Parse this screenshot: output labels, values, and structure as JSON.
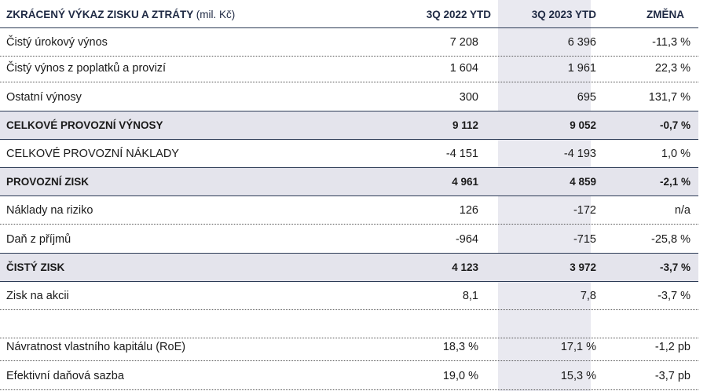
{
  "header": {
    "title": "ZKRÁCENÝ VÝKAZ ZISKU A ZTRÁTY",
    "unit": "(mil. Kč)",
    "col_2022": "3Q 2022 YTD",
    "col_2023": "3Q 2023 YTD",
    "col_change": "ZMĚNA"
  },
  "rows": [
    {
      "label": "Čistý úrokový výnos",
      "y2022": "7 208",
      "y2023": "6 396",
      "change": "-11,3 %",
      "total": false
    },
    {
      "label": "Čistý výnos z poplatků a provizí",
      "y2022": "1 604",
      "y2023": "1 961",
      "change": "22,3 %",
      "total": false
    },
    {
      "label": "Ostatní výnosy",
      "y2022": "300",
      "y2023": "695",
      "change": "131,7 %",
      "total": false
    },
    {
      "label": "CELKOVÉ PROVOZNÍ VÝNOSY",
      "y2022": "9 112",
      "y2023": "9 052",
      "change": "-0,7 %",
      "total": true
    },
    {
      "label": "CELKOVÉ PROVOZNÍ NÁKLADY",
      "y2022": "-4 151",
      "y2023": "-4 193",
      "change": "1,0 %",
      "total": false
    },
    {
      "label": "PROVOZNÍ ZISK",
      "y2022": "4 961",
      "y2023": "4 859",
      "change": "-2,1 %",
      "total": true
    },
    {
      "label": "Náklady na riziko",
      "y2022": "126",
      "y2023": "-172",
      "change": "n/a",
      "total": false
    },
    {
      "label": "Daň z příjmů",
      "y2022": "-964",
      "y2023": "-715",
      "change": "-25,8 %",
      "total": false
    },
    {
      "label": "ČISTÝ ZISK",
      "y2022": "4 123",
      "y2023": "3 972",
      "change": "-3,7 %",
      "total": true
    },
    {
      "label": "Zisk na akcii",
      "y2022": "8,1",
      "y2023": "7,8",
      "change": "-3,7 %",
      "total": false
    },
    {
      "label": "",
      "y2022": "",
      "y2023": "",
      "change": "",
      "total": false
    },
    {
      "label": "Návratnost vlastního kapitálu (RoE)",
      "y2022": "18,3 %",
      "y2023": "17,1 %",
      "change": "-1,2 pb",
      "total": false
    },
    {
      "label": "Efektivní daňová sazba",
      "y2022": "19,0 %",
      "y2023": "15,3 %",
      "change": "-3,7 pb",
      "total": false
    }
  ],
  "colors": {
    "header_text": "#1f2a44",
    "total_row_bg": "#e4e4ec",
    "highlight_column_bg": "#e9e9f0",
    "rule": "#2b3a55"
  }
}
